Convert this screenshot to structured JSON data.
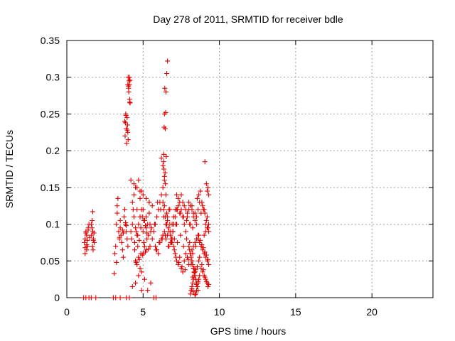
{
  "chart_data": {
    "type": "scatter",
    "title": "Day 278 of 2011, SRMTID for receiver bdle",
    "xlabel": "GPS time / hours",
    "ylabel": "SRMTID / TECUs",
    "xlim": [
      0,
      24
    ],
    "ylim": [
      0,
      0.35
    ],
    "grid": true,
    "marker": "plus",
    "color": "#e00000",
    "xticks": [
      0,
      5,
      10,
      15,
      20
    ],
    "xtick_labels": [
      "0",
      "5",
      "10",
      "15",
      "20"
    ],
    "yticks": [
      0,
      0.05,
      0.1,
      0.15,
      0.2,
      0.25,
      0.3,
      0.35
    ],
    "ytick_labels": [
      "0",
      "0.05",
      "0.1",
      "0.15",
      "0.2",
      "0.25",
      "0.3",
      "0.35"
    ],
    "series": [
      {
        "name": "SRMTID",
        "x": [
          1.15,
          1.2,
          1.25,
          1.3,
          1.35,
          1.4,
          1.2,
          1.3,
          1.45,
          1.25,
          1.35,
          1.5,
          1.2,
          1.4,
          1.3,
          1.6,
          1.65,
          1.7,
          1.75,
          1.8,
          1.62,
          1.68,
          1.72,
          1.78,
          1.7,
          1.66,
          1.74,
          3.1,
          3.15,
          3.2,
          3.25,
          3.3,
          3.35,
          3.4,
          3.45,
          3.5,
          3.55,
          3.6,
          3.65,
          3.7,
          3.75,
          3.8,
          3.85,
          3.9,
          3.95,
          4.0,
          3.3,
          3.5,
          3.7,
          3.9,
          3.25,
          3.45,
          3.65,
          3.85,
          3.8,
          3.82,
          3.86,
          3.9,
          3.92,
          3.95,
          3.98,
          4.0,
          4.02,
          3.88,
          3.84,
          3.96,
          4.0,
          4.02,
          4.05,
          4.08,
          4.1,
          4.12,
          4.15,
          4.06,
          4.1,
          4.14,
          4.04,
          4.12,
          4.2,
          4.3,
          4.4,
          4.5,
          4.6,
          4.7,
          4.8,
          4.9,
          5.0,
          5.1,
          5.2,
          5.3,
          5.4,
          5.5,
          5.6,
          4.25,
          4.45,
          4.65,
          4.85,
          5.05,
          5.25,
          5.45,
          4.35,
          4.55,
          4.75,
          4.95,
          5.15,
          5.35,
          5.55,
          4.3,
          4.4,
          4.5,
          4.6,
          4.7,
          4.8,
          4.9,
          5.0,
          5.2,
          5.4,
          4.45,
          4.65,
          4.85,
          5.05,
          5.25,
          5.45,
          4.5,
          4.6,
          4.7,
          4.8,
          4.9,
          5.0,
          5.1,
          5.2,
          4.55,
          4.75,
          4.95,
          5.15,
          5.35,
          4.2,
          4.4,
          4.6,
          4.8,
          5.0,
          5.2,
          5.4,
          5.6,
          4.3,
          4.5,
          4.7,
          4.9,
          5.1,
          5.3,
          5.5,
          5.7,
          5.8,
          5.9,
          6.0,
          6.1,
          6.2,
          6.3,
          6.4,
          6.5,
          6.6,
          6.7,
          6.8,
          6.9,
          7.0,
          7.1,
          7.2,
          5.75,
          5.95,
          6.15,
          6.35,
          6.55,
          6.75,
          6.95,
          7.15,
          5.8,
          5.9,
          6.0,
          6.1,
          6.2,
          6.3,
          6.4,
          6.5,
          6.6,
          6.7,
          6.8,
          6.9,
          7.0,
          5.85,
          6.05,
          6.25,
          6.45,
          6.65,
          6.85,
          7.05,
          6.2,
          6.3,
          6.35,
          6.4,
          6.45,
          6.5,
          6.55,
          6.6,
          6.42,
          6.38,
          6.48,
          6.52,
          6.44,
          6.46,
          6.5,
          6.4,
          6.36,
          6.34,
          6.3,
          6.35,
          6.4,
          6.45,
          6.5,
          6.55,
          6.6,
          6.65,
          6.7,
          6.75,
          6.8,
          6.85,
          6.9,
          6.95,
          7.0,
          7.0,
          7.1,
          7.2,
          7.3,
          7.4,
          7.5,
          7.6,
          7.7,
          7.8,
          7.9,
          8.0,
          8.1,
          8.2,
          8.3,
          8.4,
          8.5,
          7.05,
          7.25,
          7.45,
          7.65,
          7.85,
          8.05,
          8.25,
          8.45,
          7.1,
          7.2,
          7.3,
          7.4,
          7.5,
          7.6,
          7.7,
          7.8,
          7.9,
          8.0,
          8.1,
          8.2,
          8.3,
          8.4,
          7.15,
          7.35,
          7.55,
          7.75,
          7.95,
          8.15,
          8.35,
          7.2,
          7.3,
          7.4,
          7.5,
          7.6,
          7.7,
          7.8,
          7.9,
          8.0,
          8.1,
          8.2,
          8.3,
          8.4,
          7.25,
          7.45,
          7.65,
          7.85,
          8.05,
          8.25,
          8.0,
          8.05,
          8.1,
          8.15,
          8.2,
          8.25,
          8.3,
          8.35,
          8.4,
          8.45,
          8.5,
          8.55,
          8.6,
          8.65,
          8.7,
          8.1,
          8.2,
          8.3,
          8.4,
          8.5,
          8.6,
          8.1,
          8.15,
          8.2,
          8.25,
          8.3,
          8.35,
          8.4,
          8.45,
          8.5,
          8.55,
          8.6,
          8.65,
          8.7,
          8.2,
          8.3,
          8.4,
          8.5,
          8.6,
          8.25,
          8.35,
          8.45,
          8.55,
          8.5,
          8.6,
          8.7,
          8.8,
          8.9,
          9.0,
          9.1,
          9.2,
          9.3,
          8.55,
          8.65,
          8.75,
          8.85,
          8.95,
          9.05,
          9.15,
          9.25,
          8.6,
          8.7,
          8.8,
          8.9,
          9.0,
          9.1,
          9.2,
          9.3,
          8.65,
          8.75,
          8.85,
          8.95,
          9.05,
          9.15,
          9.25,
          8.8,
          8.9,
          9.0,
          9.1,
          9.2,
          9.3,
          8.85,
          8.95,
          9.05,
          9.15,
          9.25,
          9.0,
          9.1,
          9.2,
          9.3,
          9.05,
          9.15,
          9.25,
          9.2,
          9.3,
          1.1,
          1.25,
          1.45,
          1.6,
          1.9,
          3.05,
          3.2,
          3.5,
          3.9,
          4.1,
          5.7,
          5.85
        ],
        "y": [
          0.075,
          0.08,
          0.09,
          0.085,
          0.07,
          0.095,
          0.06,
          0.065,
          0.1,
          0.088,
          0.078,
          0.082,
          0.068,
          0.092,
          0.072,
          0.1,
          0.095,
          0.09,
          0.08,
          0.075,
          0.085,
          0.07,
          0.065,
          0.088,
          0.117,
          0.105,
          0.078,
          0.033,
          0.06,
          0.07,
          0.1,
          0.115,
          0.135,
          0.09,
          0.08,
          0.095,
          0.085,
          0.075,
          0.065,
          0.055,
          0.11,
          0.12,
          0.1,
          0.09,
          0.08,
          0.07,
          0.125,
          0.105,
          0.088,
          0.098,
          0.048,
          0.082,
          0.092,
          0.102,
          0.24,
          0.22,
          0.25,
          0.23,
          0.21,
          0.245,
          0.235,
          0.225,
          0.215,
          0.248,
          0.238,
          0.228,
          0.29,
          0.3,
          0.285,
          0.295,
          0.3,
          0.27,
          0.265,
          0.28,
          0.29,
          0.296,
          0.288,
          0.266,
          0.09,
          0.1,
          0.11,
          0.095,
          0.085,
          0.1,
          0.11,
          0.12,
          0.09,
          0.105,
          0.095,
          0.1,
          0.115,
          0.09,
          0.08,
          0.08,
          0.075,
          0.085,
          0.095,
          0.105,
          0.088,
          0.1,
          0.12,
          0.09,
          0.078,
          0.11,
          0.098,
          0.085,
          0.095,
          0.13,
          0.14,
          0.15,
          0.12,
          0.16,
          0.135,
          0.145,
          0.12,
          0.11,
          0.13,
          0.065,
          0.07,
          0.06,
          0.075,
          0.08,
          0.07,
          0.05,
          0.045,
          0.055,
          0.04,
          0.035,
          0.06,
          0.07,
          0.065,
          0.048,
          0.052,
          0.058,
          0.062,
          0.066,
          0.16,
          0.155,
          0.15,
          0.145,
          0.14,
          0.135,
          0.13,
          0.125,
          0.015,
          0.02,
          0.03,
          0.01,
          0.025,
          0.01,
          0.02,
          0.09,
          0.1,
          0.11,
          0.12,
          0.13,
          0.14,
          0.15,
          0.16,
          0.1,
          0.11,
          0.12,
          0.09,
          0.1,
          0.11,
          0.12,
          0.1,
          0.1,
          0.13,
          0.12,
          0.11,
          0.1,
          0.12,
          0.09,
          0.1,
          0.07,
          0.065,
          0.06,
          0.075,
          0.08,
          0.085,
          0.09,
          0.08,
          0.085,
          0.07,
          0.075,
          0.08,
          0.07,
          0.065,
          0.075,
          0.08,
          0.085,
          0.07,
          0.075,
          0.08,
          0.19,
          0.18,
          0.195,
          0.25,
          0.23,
          0.28,
          0.305,
          0.322,
          0.285,
          0.232,
          0.252,
          0.192,
          0.17,
          0.155,
          0.14,
          0.165,
          0.175,
          0.185,
          0.13,
          0.12,
          0.125,
          0.11,
          0.1,
          0.115,
          0.105,
          0.095,
          0.09,
          0.1,
          0.085,
          0.08,
          0.075,
          0.09,
          0.1,
          0.1,
          0.11,
          0.12,
          0.125,
          0.115,
          0.12,
          0.11,
          0.1,
          0.09,
          0.11,
          0.12,
          0.1,
          0.125,
          0.115,
          0.105,
          0.1,
          0.065,
          0.075,
          0.085,
          0.07,
          0.08,
          0.075,
          0.06,
          0.07,
          0.06,
          0.05,
          0.045,
          0.055,
          0.04,
          0.035,
          0.05,
          0.06,
          0.055,
          0.045,
          0.06,
          0.05,
          0.04,
          0.035,
          0.055,
          0.048,
          0.042,
          0.038,
          0.052,
          0.045,
          0.04,
          0.14,
          0.135,
          0.13,
          0.14,
          0.13,
          0.125,
          0.12,
          0.115,
          0.13,
          0.125,
          0.12,
          0.11,
          0.115,
          0.12,
          0.115,
          0.11,
          0.105,
          0.1,
          0.095,
          0.07,
          0.065,
          0.06,
          0.055,
          0.05,
          0.045,
          0.04,
          0.035,
          0.03,
          0.025,
          0.02,
          0.015,
          0.01,
          0.05,
          0.055,
          0.06,
          0.065,
          0.07,
          0.075,
          0.08,
          0.085,
          0.005,
          0.01,
          0.015,
          0.02,
          0.025,
          0.03,
          0.035,
          0.005,
          0.01,
          0.015,
          0.02,
          0.025,
          0.03,
          0.012,
          0.008,
          0.004,
          0.018,
          0.022,
          0.028,
          0.034,
          0.038,
          0.042,
          0.11,
          0.12,
          0.13,
          0.115,
          0.125,
          0.12,
          0.1,
          0.11,
          0.09,
          0.135,
          0.14,
          0.145,
          0.13,
          0.12,
          0.115,
          0.105,
          0.095,
          0.08,
          0.075,
          0.07,
          0.065,
          0.06,
          0.055,
          0.05,
          0.045,
          0.085,
          0.078,
          0.072,
          0.068,
          0.062,
          0.058,
          0.052,
          0.04,
          0.035,
          0.03,
          0.025,
          0.02,
          0.018,
          0.045,
          0.038,
          0.028,
          0.022,
          0.015,
          0.085,
          0.09,
          0.095,
          0.1,
          0.185,
          0.155,
          0.15,
          0.145,
          0.14,
          0,
          0,
          0,
          0,
          0,
          0,
          0,
          0,
          0,
          0,
          0,
          0
        ]
      }
    ]
  }
}
